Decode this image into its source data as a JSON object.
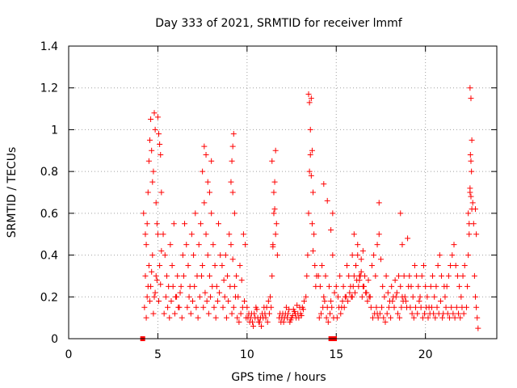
{
  "chart_data": {
    "type": "scatter",
    "title": "Day 333 of 2021, SRMTID for receiver lmmf",
    "xlabel": "GPS time / hours",
    "ylabel": "SRMTID / TECUs",
    "xlim": [
      0,
      24
    ],
    "ylim": [
      0,
      1.4
    ],
    "xticks": [
      0,
      5,
      10,
      15,
      20
    ],
    "yticks": [
      0,
      0.2,
      0.4,
      0.6,
      0.8,
      1,
      1.2,
      1.4
    ],
    "xtick_labels": [
      "0",
      "5",
      "10",
      "15",
      "20"
    ],
    "ytick_labels": [
      "0",
      "0.2",
      "0.4",
      "0.6",
      "0.8",
      "1",
      "1.2",
      "1.4"
    ],
    "grid": true,
    "marker": "+",
    "color": "#ff0000",
    "series": [
      {
        "name": "SRMTID",
        "x": [
          4.2,
          4.3,
          4.35,
          4.4,
          4.45,
          4.5,
          4.55,
          4.6,
          4.65,
          4.7,
          4.75,
          4.8,
          4.85,
          4.9,
          4.95,
          5.0,
          5.05,
          5.1,
          5.15,
          5.2,
          4.3,
          4.4,
          4.5,
          4.6,
          4.7,
          4.8,
          4.9,
          5.0,
          5.1,
          5.2,
          4.25,
          4.35,
          4.45,
          4.55,
          4.65,
          4.75,
          4.85,
          4.95,
          5.05,
          5.15,
          5.3,
          5.4,
          5.5,
          5.6,
          5.7,
          5.8,
          5.9,
          6.0,
          6.1,
          6.2,
          6.3,
          6.4,
          6.5,
          5.35,
          5.45,
          5.55,
          5.65,
          5.75,
          5.85,
          5.95,
          6.05,
          6.15,
          6.25,
          6.35,
          6.45,
          6.6,
          6.7,
          6.8,
          6.9,
          7.0,
          7.1,
          7.2,
          7.3,
          7.4,
          7.5,
          7.6,
          7.7,
          7.8,
          7.9,
          8.0,
          8.1,
          8.2,
          8.3,
          8.4,
          8.5,
          6.65,
          6.75,
          6.85,
          6.95,
          7.05,
          7.15,
          7.25,
          7.35,
          7.45,
          7.55,
          7.65,
          7.75,
          7.85,
          7.95,
          8.05,
          8.15,
          8.25,
          8.35,
          8.45,
          7.5,
          7.6,
          7.7,
          7.8,
          7.9,
          8.0,
          8.6,
          8.7,
          8.8,
          8.9,
          9.0,
          9.1,
          9.2,
          9.3,
          9.4,
          9.5,
          9.6,
          9.7,
          9.8,
          9.9,
          8.65,
          8.75,
          8.85,
          8.95,
          9.05,
          9.15,
          9.25,
          9.35,
          9.45,
          9.55,
          9.65,
          9.75,
          9.85,
          9.95,
          9.1,
          9.15,
          9.2,
          9.25,
          9.3,
          9.2,
          10.0,
          10.1,
          10.2,
          10.3,
          10.4,
          10.5,
          10.6,
          10.7,
          10.8,
          10.9,
          11.0,
          11.1,
          11.2,
          11.3,
          10.05,
          10.15,
          10.25,
          10.35,
          10.45,
          10.55,
          10.65,
          10.75,
          10.85,
          10.95,
          11.05,
          11.15,
          11.25,
          11.35,
          11.4,
          11.45,
          11.5,
          11.55,
          11.6,
          11.65,
          11.7,
          11.4,
          11.5,
          11.6,
          11.45,
          11.55,
          11.8,
          11.9,
          12.0,
          12.1,
          12.2,
          12.3,
          12.4,
          12.5,
          12.6,
          12.7,
          12.8,
          12.9,
          13.0,
          13.1,
          13.2,
          11.85,
          11.95,
          12.05,
          12.15,
          12.25,
          12.35,
          12.45,
          12.55,
          12.65,
          12.75,
          12.85,
          12.95,
          13.05,
          13.15,
          13.3,
          13.35,
          13.4,
          13.45,
          13.5,
          13.55,
          13.6,
          13.65,
          13.7,
          13.75,
          13.8,
          13.85,
          13.9,
          13.45,
          13.5,
          13.55,
          13.6,
          13.65,
          13.7,
          14.0,
          14.1,
          14.2,
          14.3,
          14.4,
          14.5,
          14.6,
          14.7,
          14.8,
          14.9,
          14.05,
          14.15,
          14.25,
          14.35,
          14.45,
          14.55,
          14.65,
          14.75,
          14.85,
          14.3,
          14.5,
          14.7,
          14.8,
          15.0,
          15.1,
          15.2,
          15.3,
          15.4,
          15.5,
          15.6,
          15.7,
          15.8,
          15.9,
          16.0,
          16.1,
          16.2,
          16.3,
          16.4,
          16.5,
          16.6,
          16.7,
          16.8,
          16.9,
          15.05,
          15.15,
          15.25,
          15.35,
          15.45,
          15.55,
          15.65,
          15.75,
          15.85,
          15.95,
          16.05,
          16.15,
          16.25,
          16.35,
          16.45,
          16.55,
          16.65,
          16.75,
          16.85,
          16.95,
          15.9,
          16.0,
          16.1,
          16.2,
          16.3,
          16.4,
          16.5,
          17.0,
          17.1,
          17.2,
          17.3,
          17.4,
          17.5,
          17.6,
          17.7,
          17.8,
          17.9,
          18.0,
          18.1,
          18.2,
          18.3,
          18.4,
          18.5,
          18.6,
          18.7,
          18.8,
          18.9,
          17.05,
          17.15,
          17.25,
          17.35,
          17.45,
          17.55,
          17.65,
          17.75,
          17.85,
          17.95,
          18.05,
          18.15,
          18.25,
          18.35,
          18.45,
          18.55,
          18.65,
          18.75,
          18.85,
          18.95,
          17.3,
          17.4,
          18.6,
          18.7,
          19.0,
          19.1,
          19.2,
          19.3,
          19.4,
          19.5,
          19.6,
          19.7,
          19.8,
          19.9,
          20.0,
          20.1,
          20.2,
          20.3,
          20.4,
          20.5,
          20.6,
          20.7,
          20.8,
          20.9,
          19.05,
          19.15,
          19.25,
          19.35,
          19.45,
          19.55,
          19.65,
          19.75,
          19.85,
          19.95,
          20.05,
          20.15,
          20.25,
          20.35,
          20.45,
          20.55,
          20.65,
          20.75,
          20.85,
          20.95,
          21.0,
          21.1,
          21.2,
          21.3,
          21.4,
          21.5,
          21.6,
          21.7,
          21.8,
          21.9,
          22.0,
          22.1,
          22.2,
          21.05,
          21.15,
          21.25,
          21.35,
          21.45,
          21.55,
          21.65,
          21.75,
          21.85,
          21.95,
          22.05,
          22.15,
          22.3,
          22.35,
          22.4,
          22.45,
          22.5,
          22.55,
          22.6,
          22.65,
          22.7,
          22.75,
          22.8,
          22.85,
          22.9,
          22.95,
          22.4,
          22.45,
          22.5,
          22.55,
          22.6,
          22.5,
          22.55,
          22.52,
          22.58,
          22.8,
          22.85
        ],
        "y": [
          0.6,
          0.5,
          0.45,
          0.55,
          0.7,
          0.85,
          0.95,
          1.05,
          0.9,
          0.75,
          0.8,
          1.08,
          1.0,
          0.65,
          0.55,
          1.06,
          0.98,
          0.93,
          0.88,
          0.7,
          0.3,
          0.2,
          0.35,
          0.25,
          0.4,
          0.2,
          0.3,
          0.5,
          0.35,
          0.42,
          0.15,
          0.1,
          0.25,
          0.18,
          0.32,
          0.12,
          0.22,
          0.28,
          0.18,
          0.26,
          0.5,
          0.4,
          0.3,
          0.25,
          0.45,
          0.35,
          0.55,
          0.2,
          0.3,
          0.15,
          0.25,
          0.4,
          0.55,
          0.12,
          0.2,
          0.15,
          0.1,
          0.18,
          0.25,
          0.12,
          0.2,
          0.15,
          0.22,
          0.1,
          0.3,
          0.45,
          0.35,
          0.25,
          0.5,
          0.4,
          0.6,
          0.3,
          0.45,
          0.55,
          0.35,
          0.65,
          0.5,
          0.4,
          0.3,
          0.6,
          0.45,
          0.35,
          0.25,
          0.55,
          0.4,
          0.15,
          0.2,
          0.12,
          0.18,
          0.25,
          0.15,
          0.1,
          0.2,
          0.3,
          0.15,
          0.22,
          0.18,
          0.12,
          0.2,
          0.25,
          0.15,
          0.1,
          0.18,
          0.22,
          0.8,
          0.92,
          0.88,
          0.75,
          0.7,
          0.85,
          0.35,
          0.28,
          0.4,
          0.3,
          0.5,
          0.45,
          0.38,
          0.25,
          0.3,
          0.2,
          0.35,
          0.28,
          0.5,
          0.45,
          0.15,
          0.2,
          0.1,
          0.18,
          0.25,
          0.12,
          0.15,
          0.2,
          0.1,
          0.08,
          0.12,
          0.15,
          0.18,
          0.1,
          0.75,
          0.85,
          0.92,
          0.98,
          0.6,
          0.7,
          0.15,
          0.12,
          0.1,
          0.08,
          0.12,
          0.15,
          0.1,
          0.08,
          0.06,
          0.1,
          0.12,
          0.15,
          0.18,
          0.2,
          0.1,
          0.08,
          0.12,
          0.06,
          0.1,
          0.14,
          0.08,
          0.1,
          0.12,
          0.15,
          0.1,
          0.08,
          0.12,
          0.15,
          0.3,
          0.45,
          0.6,
          0.75,
          0.9,
          0.55,
          0.4,
          0.85,
          0.7,
          0.5,
          0.44,
          0.62,
          0.1,
          0.08,
          0.12,
          0.1,
          0.15,
          0.12,
          0.08,
          0.1,
          0.14,
          0.12,
          0.16,
          0.1,
          0.12,
          0.15,
          0.18,
          0.12,
          0.1,
          0.08,
          0.12,
          0.1,
          0.14,
          0.09,
          0.11,
          0.13,
          0.1,
          0.12,
          0.15,
          0.11,
          0.14,
          0.2,
          0.3,
          0.4,
          0.6,
          0.8,
          1.0,
          1.15,
          0.9,
          0.7,
          0.5,
          0.35,
          0.25,
          0.3,
          1.17,
          1.13,
          0.88,
          0.78,
          0.55,
          0.42,
          0.3,
          0.25,
          0.35,
          0.2,
          0.3,
          0.15,
          0.25,
          0.18,
          0.4,
          0.22,
          0.1,
          0.12,
          0.15,
          0.18,
          0.1,
          0.08,
          0.12,
          0.15,
          0.1,
          0.74,
          0.66,
          0.52,
          0.6,
          0.25,
          0.2,
          0.3,
          0.15,
          0.25,
          0.2,
          0.35,
          0.3,
          0.25,
          0.2,
          0.3,
          0.35,
          0.4,
          0.28,
          0.32,
          0.25,
          0.3,
          0.22,
          0.28,
          0.2,
          0.1,
          0.15,
          0.12,
          0.18,
          0.15,
          0.2,
          0.18,
          0.22,
          0.2,
          0.25,
          0.22,
          0.28,
          0.25,
          0.3,
          0.2,
          0.25,
          0.22,
          0.18,
          0.2,
          0.15,
          0.4,
          0.5,
          0.35,
          0.45,
          0.3,
          0.38,
          0.42,
          0.35,
          0.4,
          0.3,
          0.45,
          0.5,
          0.38,
          0.25,
          0.2,
          0.3,
          0.22,
          0.18,
          0.25,
          0.2,
          0.28,
          0.22,
          0.3,
          0.25,
          0.2,
          0.3,
          0.18,
          0.1,
          0.12,
          0.15,
          0.1,
          0.12,
          0.15,
          0.1,
          0.08,
          0.12,
          0.15,
          0.1,
          0.18,
          0.15,
          0.2,
          0.12,
          0.1,
          0.15,
          0.18,
          0.2,
          0.15,
          0.12,
          0.65,
          0.6,
          0.45,
          0.48,
          0.3,
          0.25,
          0.2,
          0.35,
          0.3,
          0.25,
          0.2,
          0.3,
          0.35,
          0.25,
          0.2,
          0.15,
          0.25,
          0.3,
          0.2,
          0.25,
          0.35,
          0.4,
          0.3,
          0.25,
          0.15,
          0.12,
          0.1,
          0.15,
          0.12,
          0.18,
          0.15,
          0.1,
          0.12,
          0.15,
          0.1,
          0.12,
          0.15,
          0.12,
          0.1,
          0.15,
          0.12,
          0.18,
          0.1,
          0.12,
          0.2,
          0.25,
          0.3,
          0.35,
          0.4,
          0.45,
          0.35,
          0.3,
          0.25,
          0.2,
          0.3,
          0.35,
          0.25,
          0.15,
          0.12,
          0.1,
          0.15,
          0.12,
          0.1,
          0.15,
          0.12,
          0.1,
          0.15,
          0.12,
          0.15,
          0.25,
          0.4,
          0.55,
          0.7,
          0.85,
          0.95,
          0.65,
          0.55,
          0.3,
          0.2,
          0.15,
          0.1,
          0.05,
          0.6,
          0.5,
          0.72,
          0.68,
          0.62,
          1.2,
          1.15,
          0.88,
          0.8,
          0.62,
          0.5
        ]
      },
      {
        "name": "dropouts",
        "x": [
          4.15,
          14.7,
          14.8,
          14.9
        ],
        "y": [
          0,
          0,
          0,
          0
        ]
      }
    ]
  }
}
